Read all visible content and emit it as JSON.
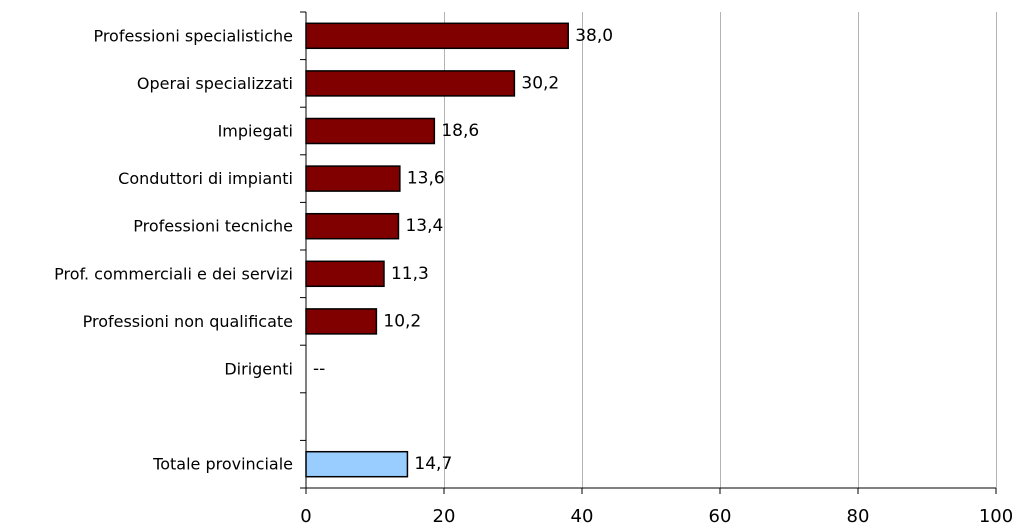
{
  "chart_data": {
    "type": "bar",
    "orientation": "horizontal",
    "categories": [
      "Professioni specialistiche",
      "Operai specializzati",
      "Impiegati",
      "Conduttori di impianti",
      "Professioni tecniche",
      "Prof. commerciali e dei servizi",
      "Professioni non qualificate",
      "Dirigenti",
      "",
      "Totale provinciale"
    ],
    "values": [
      38.0,
      30.2,
      18.6,
      13.6,
      13.4,
      11.3,
      10.2,
      null,
      null,
      14.7
    ],
    "value_labels": [
      "38,0",
      "30,2",
      "18,6",
      "13,6",
      "13,4",
      "11,3",
      "10,2",
      "--",
      "",
      "14,7"
    ],
    "bar_colors": [
      "#800000",
      "#800000",
      "#800000",
      "#800000",
      "#800000",
      "#800000",
      "#800000",
      "#800000",
      "#800000",
      "#99ccff"
    ],
    "xlim": [
      0,
      100
    ],
    "xticks": [
      0,
      20,
      40,
      60,
      80,
      100
    ],
    "grid": "vertical",
    "title": "",
    "xlabel": "",
    "ylabel": ""
  }
}
